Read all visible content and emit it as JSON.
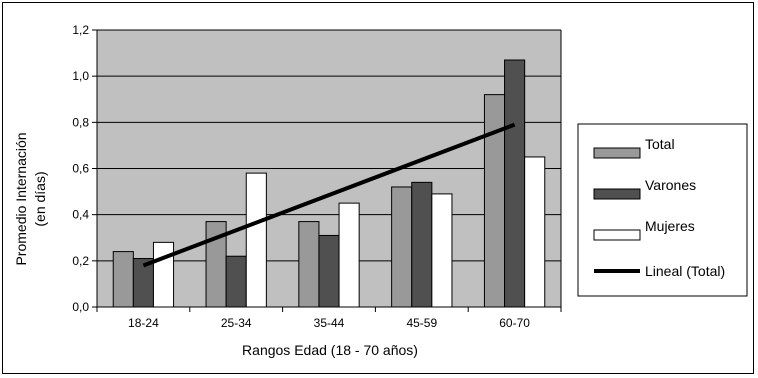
{
  "chart_data": {
    "type": "bar",
    "categories": [
      "18-24",
      "25-34",
      "35-44",
      "45-59",
      "60-70"
    ],
    "series": [
      {
        "name": "Total",
        "values": [
          0.24,
          0.37,
          0.37,
          0.52,
          0.92
        ],
        "color": "#999999"
      },
      {
        "name": "Varones",
        "values": [
          0.21,
          0.22,
          0.31,
          0.54,
          1.07
        ],
        "color": "#505050"
      },
      {
        "name": "Mujeres",
        "values": [
          0.28,
          0.58,
          0.45,
          0.49,
          0.65
        ],
        "color": "#ffffff"
      }
    ],
    "trendline": {
      "name": "Lineal (Total)",
      "start": 0.18,
      "end": 0.79,
      "color": "#000000"
    },
    "ylabel_line1": "Promedio Internación",
    "ylabel_line2": "(en días)",
    "xlabel": "Rangos Edad (18 - 70 años)",
    "ylim": [
      0,
      1.2
    ],
    "yticks": [
      "0,0",
      "0,2",
      "0,4",
      "0,6",
      "0,8",
      "1,0",
      "1,2"
    ],
    "plot_background": "#c0c0c0",
    "grid": true,
    "legend_position": "right"
  }
}
